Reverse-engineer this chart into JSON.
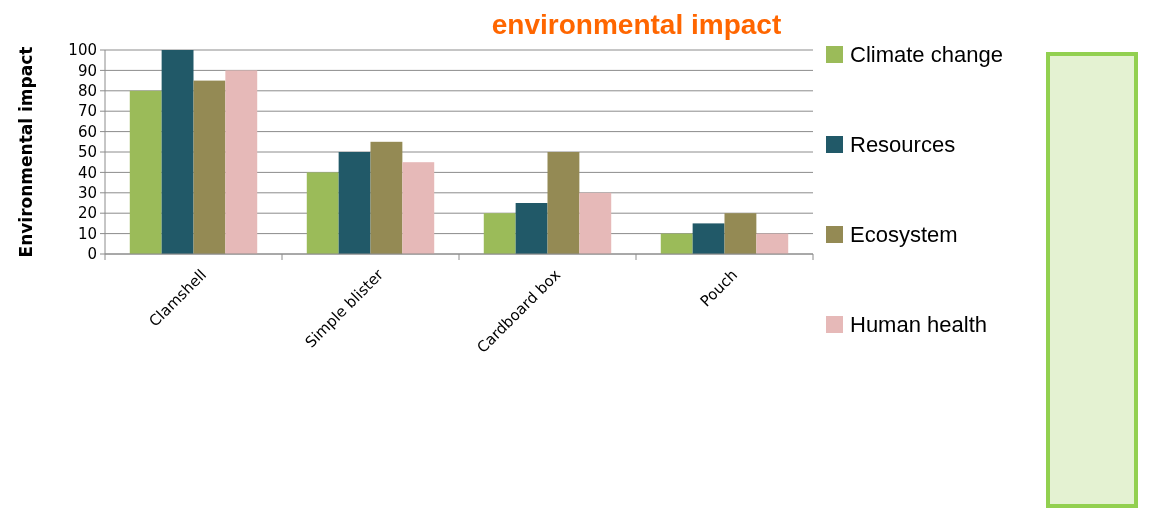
{
  "chart_data": {
    "type": "bar",
    "title": "environmental impact",
    "ylabel": "Environmental impact",
    "categories": [
      "Clamshell",
      "Simple blister",
      "Cardboard box",
      "Pouch"
    ],
    "series": [
      {
        "name": "Climate change",
        "color": "#9bbb59",
        "values": [
          80,
          40,
          20,
          10
        ]
      },
      {
        "name": "Resources",
        "color": "#215968",
        "values": [
          100,
          50,
          25,
          15
        ]
      },
      {
        "name": "Ecosystem",
        "color": "#948a54",
        "values": [
          85,
          55,
          50,
          20
        ]
      },
      {
        "name": "Human health",
        "color": "#e6b9b8",
        "values": [
          90,
          45,
          30,
          10
        ]
      }
    ],
    "ylim": [
      0,
      100
    ],
    "yticks": [
      0,
      10,
      20,
      30,
      40,
      50,
      60,
      70,
      80,
      90,
      100
    ],
    "grid": "y",
    "legend": "right"
  }
}
